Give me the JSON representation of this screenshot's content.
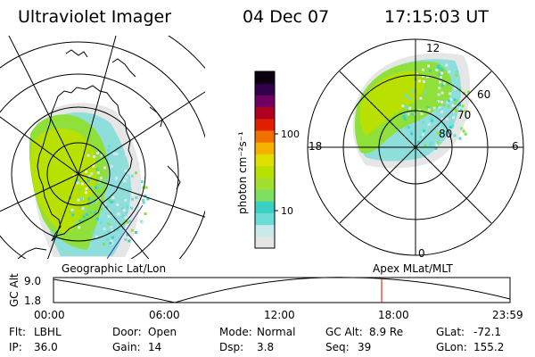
{
  "header": {
    "title": "Ultraviolet Imager",
    "date": "04 Dec 07",
    "time": "17:15:03 UT"
  },
  "colorbar": {
    "label": "photon cm⁻²s⁻¹",
    "ticks": [
      "100",
      "10"
    ],
    "colors": [
      "#e4e4e4",
      "#c8eaea",
      "#6cdcd8",
      "#3ad0c6",
      "#7ee060",
      "#a2e030",
      "#b8e000",
      "#e0e000",
      "#f8b000",
      "#f07000",
      "#e02000",
      "#b00020",
      "#700060",
      "#30004a",
      "#0a0010"
    ]
  },
  "left_panel": {
    "caption": "Geographic Lat/Lon"
  },
  "right_panel": {
    "caption": "Apex MLat/MLT",
    "mlt_labels": [
      "12",
      "18",
      "6",
      "0"
    ],
    "lat_labels": [
      "60",
      "70",
      "80"
    ]
  },
  "timeline": {
    "axis_label": "GC Alt",
    "y_ticks": [
      "9.0",
      "1.8"
    ],
    "x_ticks": [
      "00:00",
      "06:00",
      "12:00",
      "18:00",
      "23:59"
    ],
    "marker_time": "17:15",
    "marker_color": "#e00000"
  },
  "info": {
    "flt_label": "Flt:",
    "flt_value": "LBHL",
    "ip_label": "IP:",
    "ip_value": "36.0",
    "door_label": "Door:",
    "door_value": "Open",
    "gain_label": "Gain:",
    "gain_value": "14",
    "mode_label": "Mode:",
    "mode_value": "Normal",
    "dsp_label": "Dsp:",
    "dsp_value": "3.8",
    "gcalt_label": "GC Alt:",
    "gcalt_value": "8.9 Re",
    "seq_label": "Seq:",
    "seq_value": "39",
    "glat_label": "GLat:",
    "glat_value": "-72.1",
    "glon_label": "GLon:",
    "glon_value": "155.2"
  }
}
